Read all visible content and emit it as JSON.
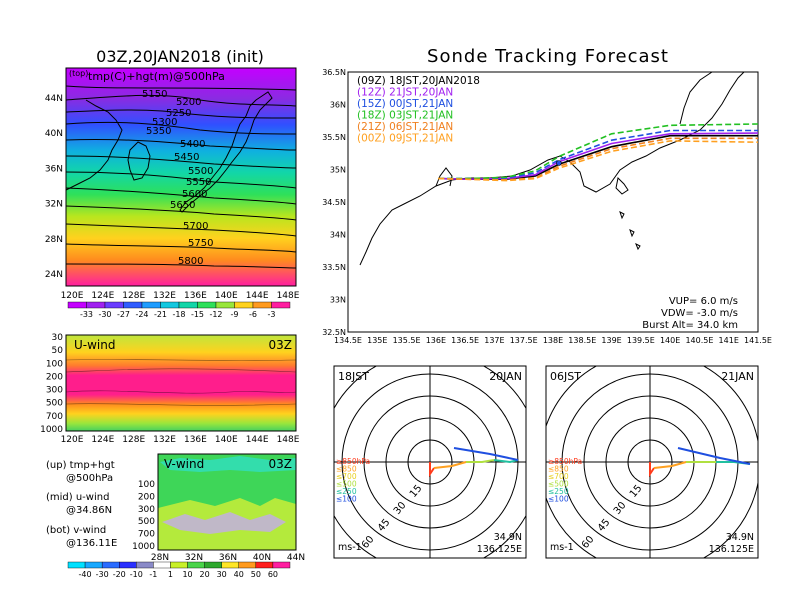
{
  "left_title": "03Z,20JAN2018 (init)",
  "right_title": "Sonde Tracking Forecast",
  "colors": {
    "panel_bg": "#ffffff",
    "track_09z": "#000000",
    "track_12z": "#a020f0",
    "track_15z": "#1f4fe0",
    "track_18z": "#22c022",
    "track_21z": "#f08020",
    "track_00z": "#ffa020"
  },
  "chart_data": [
    {
      "type": "heatmap",
      "panel": "upper-air-map",
      "title": "tmp(C)+hgt(m)@500hPa",
      "label_corner": "(top)",
      "xticks": [
        "120E",
        "124E",
        "128E",
        "132E",
        "136E",
        "140E",
        "144E",
        "148E"
      ],
      "yticks": [
        "24N",
        "28N",
        "32N",
        "36N",
        "40N",
        "44N"
      ],
      "contours": [
        "5150",
        "5200",
        "5250",
        "5300",
        "5350",
        "5400",
        "5450",
        "5500",
        "5550",
        "5600",
        "5650",
        "5700",
        "5750",
        "5800"
      ],
      "colorbar": [
        "-33",
        "-30",
        "-27",
        "-24",
        "-21",
        "-18",
        "-15",
        "-12",
        "-9",
        "-6",
        "-3"
      ]
    },
    {
      "type": "heatmap",
      "panel": "u-wind-section",
      "title": "U-wind",
      "time_label": "03Z",
      "xticks": [
        "120E",
        "124E",
        "128E",
        "132E",
        "136E",
        "140E",
        "144E",
        "148E"
      ],
      "yticks": [
        "30",
        "50",
        "100",
        "200",
        "300",
        "500",
        "700",
        "1000"
      ]
    },
    {
      "type": "heatmap",
      "panel": "v-wind-section",
      "title": "V-wind",
      "time_label": "03Z",
      "xticks": [
        "28N",
        "32N",
        "36N",
        "40N",
        "44N"
      ],
      "yticks": [
        "100",
        "200",
        "300",
        "500",
        "700",
        "1000"
      ],
      "colorbar": [
        "-40",
        "-30",
        "-20",
        "-10",
        "-1",
        "1",
        "10",
        "20",
        "30",
        "40",
        "50",
        "60"
      ]
    },
    {
      "type": "line",
      "panel": "tracking-map",
      "xticks": [
        "134.5E",
        "135E",
        "135.5E",
        "136E",
        "136.5E",
        "137E",
        "137.5E",
        "138E",
        "138.5E",
        "139E",
        "139.5E",
        "140E",
        "140.5E",
        "141E",
        "141.5E"
      ],
      "yticks": [
        "32.5N",
        "33N",
        "33.5N",
        "34N",
        "34.5N",
        "35N",
        "35.5N",
        "36N",
        "36.5N"
      ],
      "xlim": [
        134.5,
        141.5
      ],
      "ylim": [
        32.5,
        36.5
      ],
      "legend": [
        "(09Z)  18JST,20JAN2018",
        "(12Z)  21JST,20JAN",
        "(15Z)  00JST,21JAN",
        "(18Z)  03JST,21JAN",
        "(21Z)  06JST,21JAN",
        "(00Z)  09JST,21JAN"
      ],
      "launch_point": [
        138.1,
        35.1
      ],
      "series": [
        {
          "name": "(09Z)  18JST,20JAN2018",
          "x": [
            136.04,
            136.5,
            137.2,
            137.7,
            138.1,
            139.0,
            140.0,
            141.5
          ],
          "y": [
            34.86,
            34.85,
            34.85,
            34.9,
            35.08,
            35.35,
            35.52,
            35.52
          ]
        },
        {
          "name": "(12Z)  21JST,20JAN",
          "x": [
            136.04,
            136.5,
            137.2,
            137.7,
            138.1,
            139.0,
            140.0,
            141.5
          ],
          "y": [
            34.86,
            34.85,
            34.86,
            34.92,
            35.12,
            35.4,
            35.55,
            35.56
          ]
        },
        {
          "name": "(15Z)  00JST,21JAN",
          "x": [
            136.04,
            136.5,
            137.2,
            137.7,
            138.1,
            139.0,
            140.0,
            141.5
          ],
          "y": [
            34.86,
            34.86,
            34.87,
            34.95,
            35.15,
            35.45,
            35.6,
            35.6
          ]
        },
        {
          "name": "(18Z)  03JST,21JAN",
          "x": [
            136.04,
            136.5,
            137.2,
            137.7,
            138.1,
            139.0,
            140.0,
            141.5
          ],
          "y": [
            34.86,
            34.86,
            34.88,
            34.98,
            35.2,
            35.55,
            35.68,
            35.7
          ]
        },
        {
          "name": "(21Z)  06JST,21JAN",
          "x": [
            136.04,
            136.5,
            137.2,
            137.7,
            138.1,
            139.0,
            140.0,
            141.5
          ],
          "y": [
            34.86,
            34.85,
            34.84,
            34.87,
            35.05,
            35.32,
            35.48,
            35.48
          ]
        },
        {
          "name": "(00Z)  09JST,21JAN",
          "x": [
            136.04,
            136.5,
            137.2,
            137.7,
            138.1,
            139.0,
            140.0,
            141.5
          ],
          "y": [
            34.86,
            34.85,
            34.83,
            34.86,
            35.02,
            35.28,
            35.44,
            35.42
          ]
        }
      ],
      "annotations": [
        "VUP=  6.0  m/s",
        "VDW= -3.0  m/s",
        "Burst Alt=  34.0  km"
      ]
    },
    {
      "type": "line",
      "panel": "hodograph-18jst",
      "time_label": "18JST",
      "date_label": "20JAN",
      "ring_labels": [
        "15",
        "30",
        "45",
        "60"
      ],
      "levels": [
        "≥850hPa",
        "≤850",
        "≤700",
        "≤500",
        "≤250",
        "≤100"
      ],
      "position": [
        "34.9N",
        "136.125E"
      ],
      "unit": "ms-1"
    },
    {
      "type": "line",
      "panel": "hodograph-06jst",
      "time_label": "06JST",
      "date_label": "21JAN",
      "ring_labels": [
        "15",
        "30",
        "45",
        "60"
      ],
      "levels": [
        "≥850hPa",
        "≤850",
        "≤700",
        "≤500",
        "≤250",
        "≤100"
      ],
      "position": [
        "34.9N",
        "136.125E"
      ],
      "unit": "ms-1"
    }
  ],
  "side_notes": {
    "up_line1": "(up) tmp+hgt",
    "up_line2": "@500hPa",
    "mid_line1": "(mid) u-wind",
    "mid_line2": "@34.86N",
    "bot_line1": "(bot) v-wind",
    "bot_line2": "@136.11E"
  }
}
